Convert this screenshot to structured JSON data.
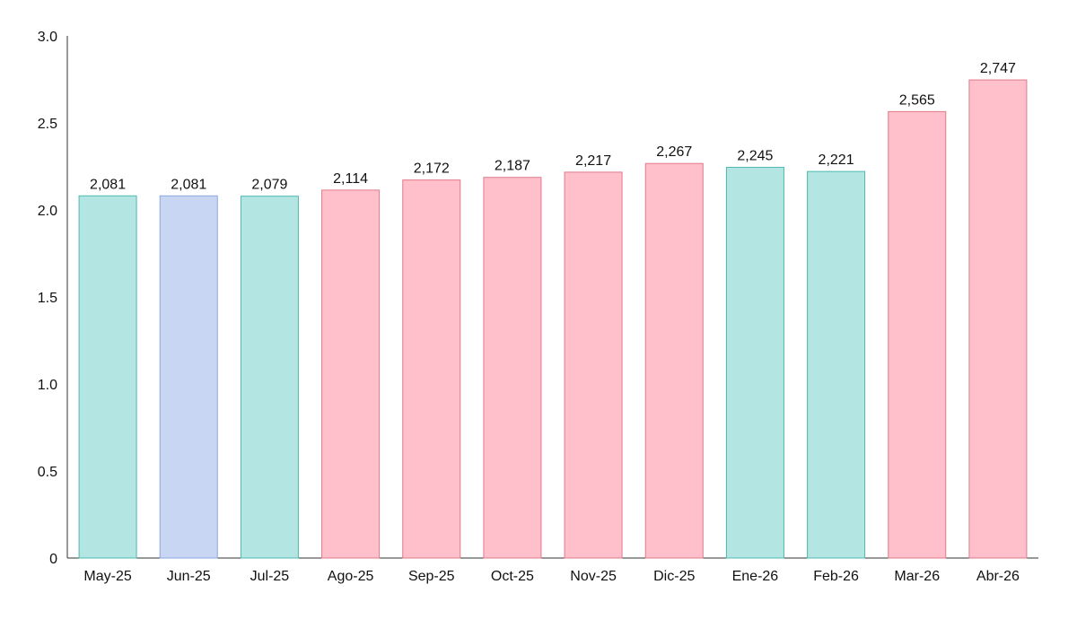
{
  "chart_data": {
    "type": "bar",
    "title": "",
    "xlabel": "",
    "ylabel": "",
    "ylim": [
      0,
      3.0
    ],
    "y_ticks": [
      "0",
      "0.5",
      "1.0",
      "1.5",
      "2.0",
      "2.5",
      "3.0"
    ],
    "grid": false,
    "categories": [
      "May-25",
      "Jun-25",
      "Jul-25",
      "Ago-25",
      "Sep-25",
      "Oct-25",
      "Nov-25",
      "Dic-25",
      "Ene-26",
      "Feb-26",
      "Mar-26",
      "Abr-26"
    ],
    "values": [
      2.081,
      2.081,
      2.079,
      2.114,
      2.172,
      2.187,
      2.217,
      2.267,
      2.245,
      2.221,
      2.565,
      2.747
    ],
    "data_labels": [
      "2,081",
      "2,081",
      "2,079",
      "2,114",
      "2,172",
      "2,187",
      "2,217",
      "2,267",
      "2,245",
      "2,221",
      "2,565",
      "2,747"
    ],
    "bar_colors": [
      "teal",
      "blue",
      "teal",
      "pink",
      "pink",
      "pink",
      "pink",
      "pink",
      "teal",
      "teal",
      "pink",
      "pink"
    ]
  },
  "colors": {
    "teal_fill": "#b3e6e3",
    "teal_stroke": "#4fb8b0",
    "blue_fill": "#c9d6f3",
    "blue_stroke": "#8aa6e0",
    "pink_fill": "#ffc0cb",
    "pink_stroke": "#e07a8a",
    "axis": "#333333"
  }
}
